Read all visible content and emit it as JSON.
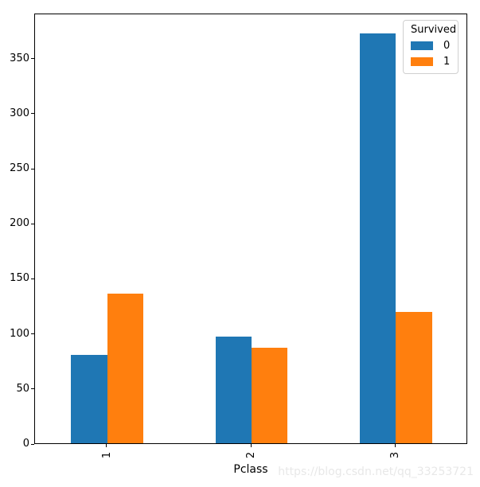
{
  "chart_data": {
    "type": "bar",
    "title": "",
    "xlabel": "Pclass",
    "ylabel": "",
    "categories": [
      "1",
      "2",
      "3"
    ],
    "series": [
      {
        "name": "0",
        "color": "#1f77b4",
        "values": [
          80,
          97,
          372
        ]
      },
      {
        "name": "1",
        "color": "#ff7f0e",
        "values": [
          136,
          87,
          119
        ]
      }
    ],
    "legend": {
      "title": "Survived",
      "position": "upper right"
    },
    "ylim": [
      0,
      391
    ],
    "yticks": [
      0,
      50,
      100,
      150,
      200,
      250,
      300,
      350
    ],
    "grid": false,
    "xtick_rotation": 90,
    "bar_group_width_fraction": 0.5
  },
  "watermark": {
    "text": "https://blog.csdn.net/qq_33253721",
    "color": "#e8e8e8"
  }
}
